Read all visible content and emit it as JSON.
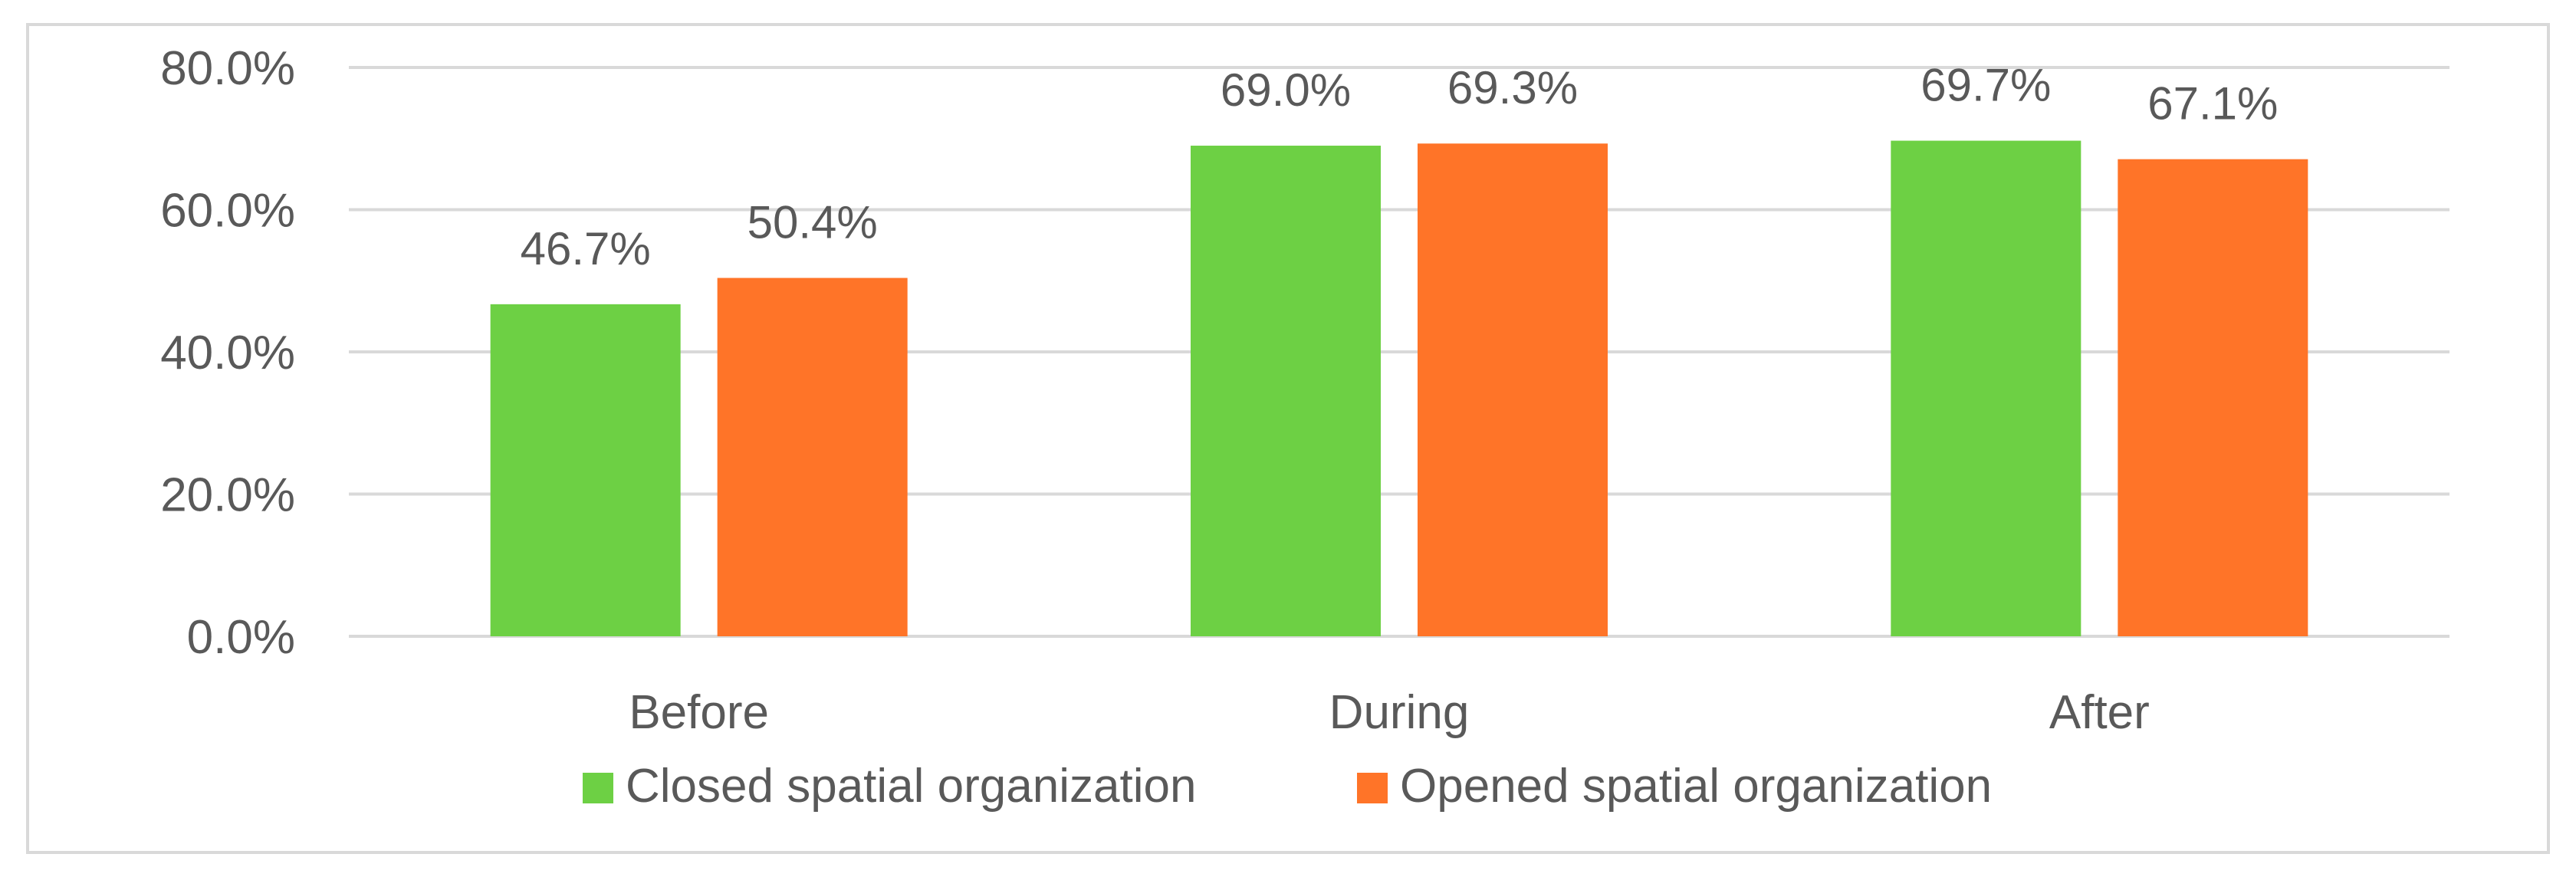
{
  "chart_data": {
    "type": "bar",
    "title": "",
    "xlabel": "",
    "ylabel": "",
    "categories": [
      "Before",
      "During",
      "After"
    ],
    "series": [
      {
        "name": "Closed spatial organization",
        "values": [
          46.7,
          69.0,
          69.7
        ],
        "labels": [
          "46.7%",
          "69.0%",
          "69.7%"
        ],
        "color": "#6dd044"
      },
      {
        "name": "Opened spatial organization",
        "values": [
          50.4,
          69.3,
          67.1
        ],
        "labels": [
          "50.4%",
          "69.3%",
          "67.1%"
        ],
        "color": "#ff7428"
      }
    ],
    "ylim": [
      0,
      80
    ],
    "yticks": [
      0,
      20,
      40,
      60,
      80
    ],
    "ytick_labels": [
      "0.0%",
      "20.0%",
      "40.0%",
      "60.0%",
      "80.0%"
    ],
    "grid": true,
    "grid_color": "#d9d9d9",
    "text_color": "#595959",
    "legend_position": "bottom"
  }
}
